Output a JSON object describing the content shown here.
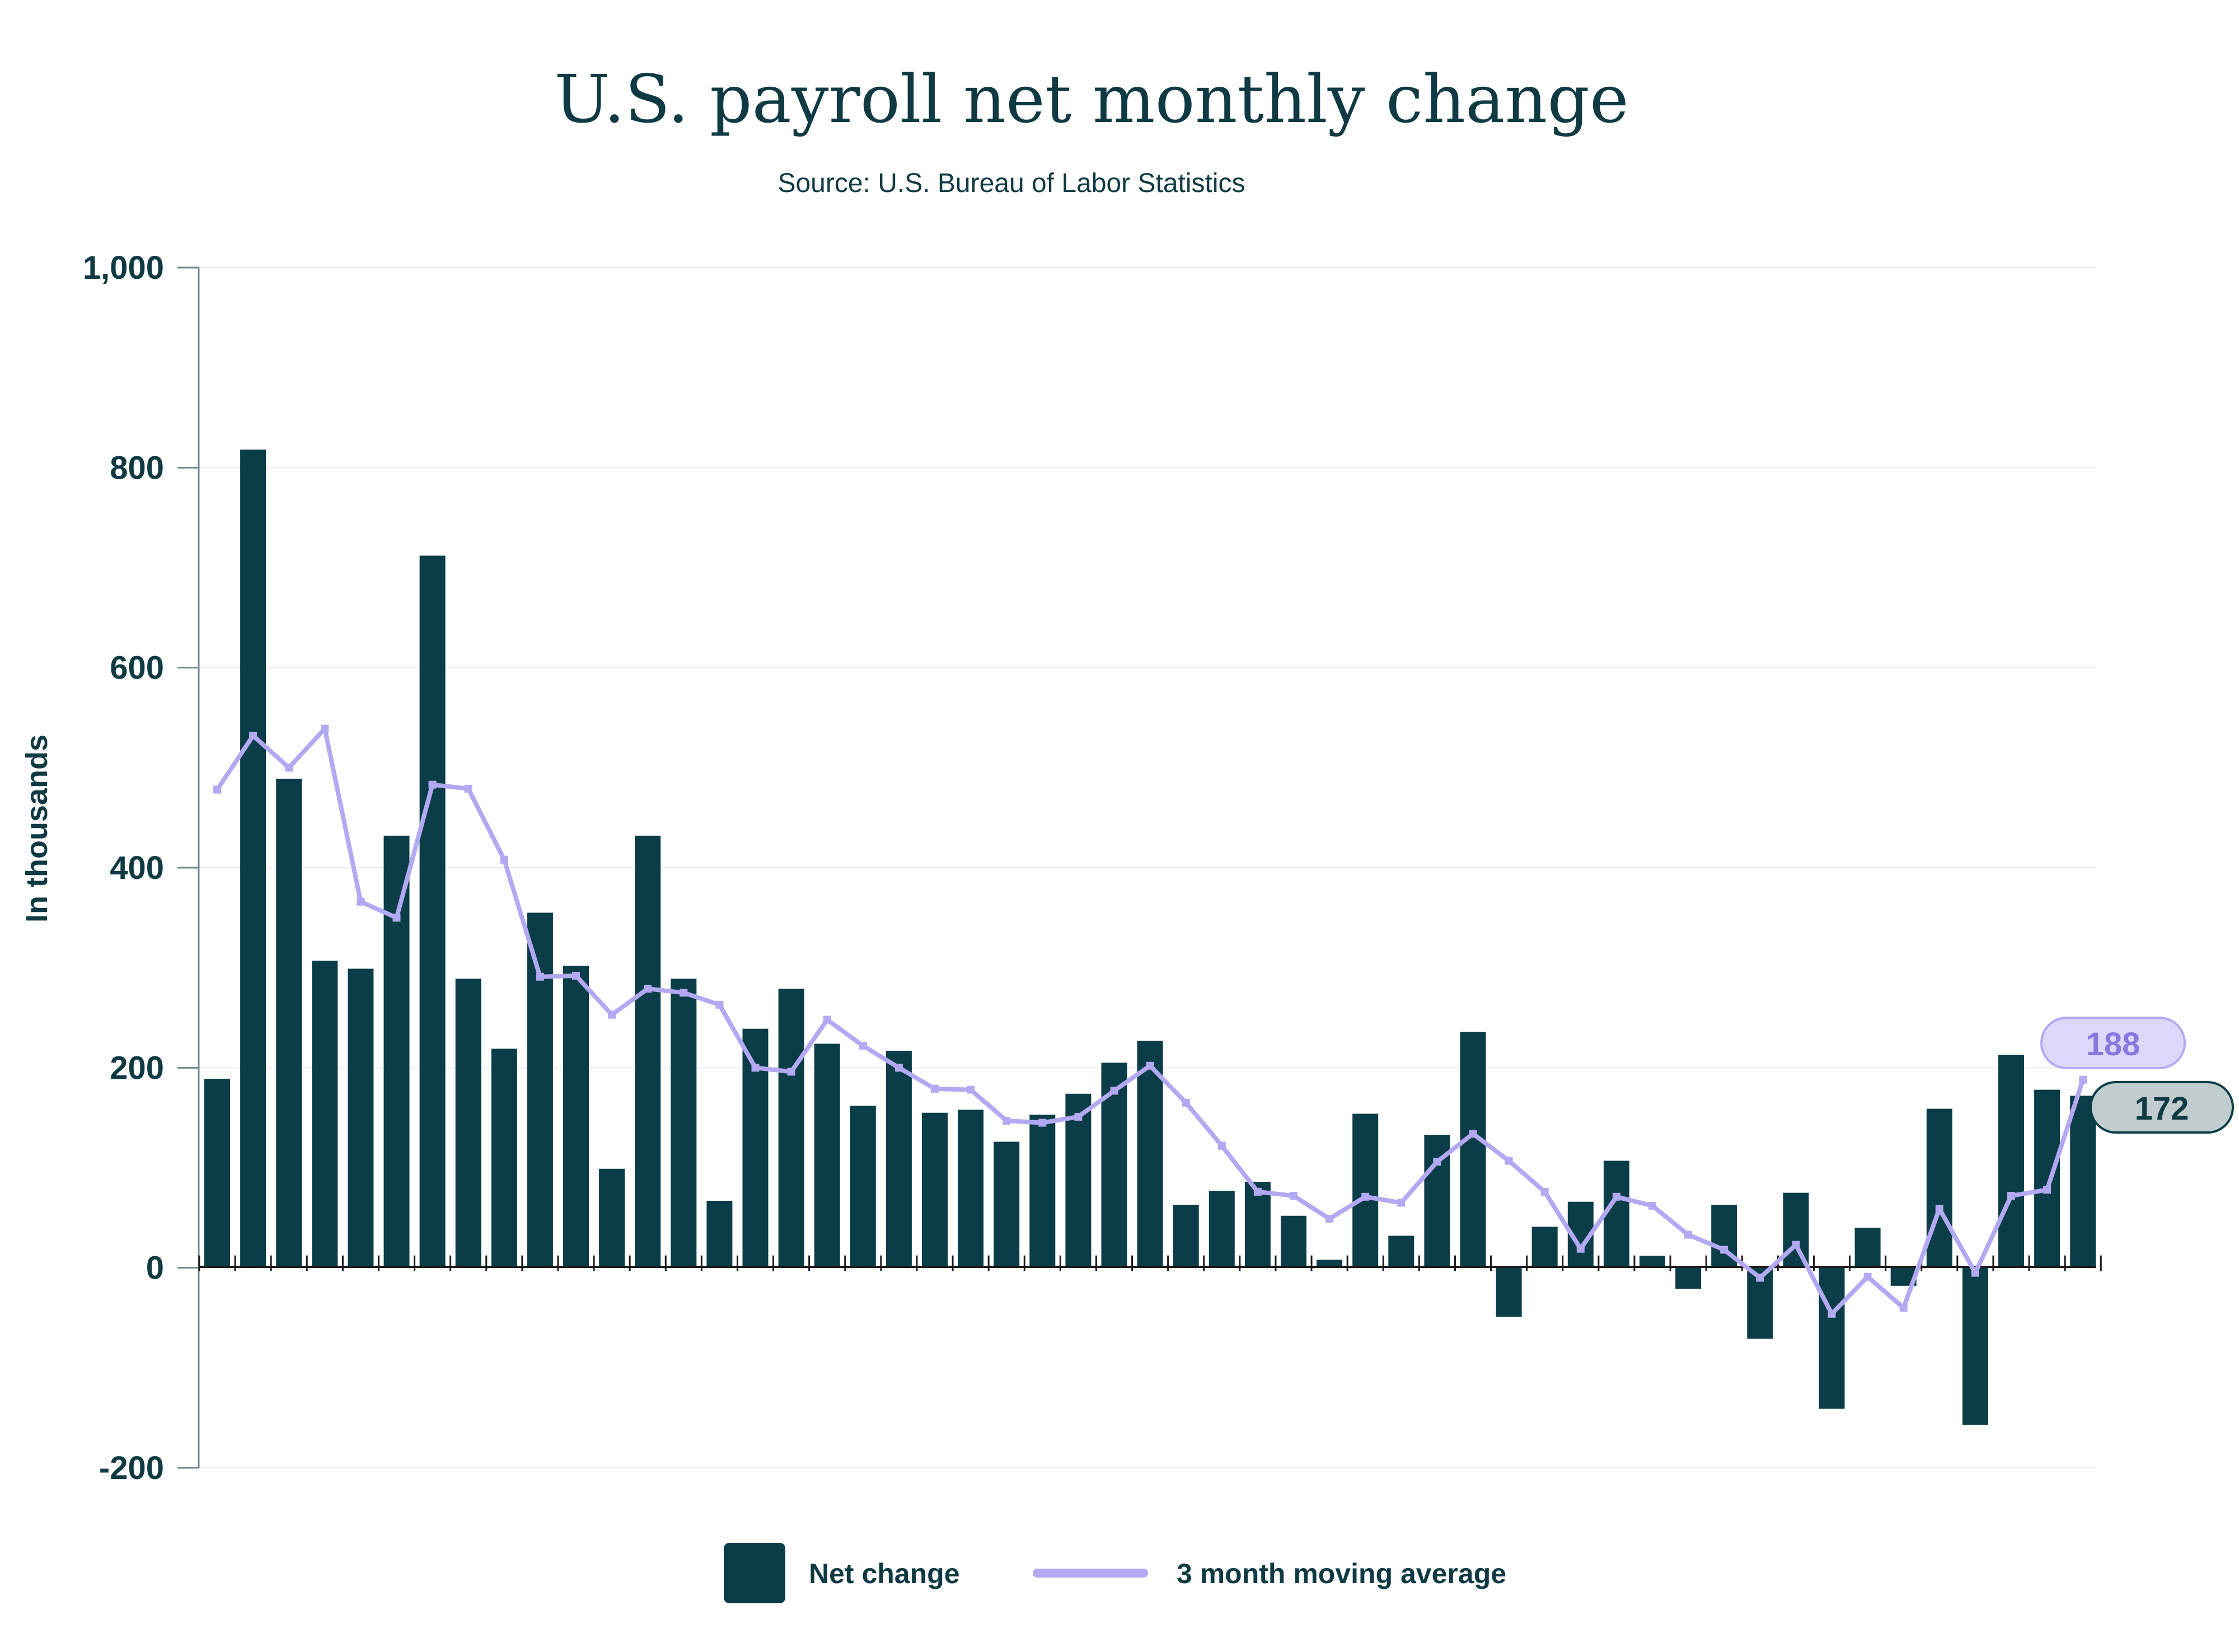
{
  "title": "U.S. payroll net monthly change",
  "subtitle": "Source: U.S. Bureau of Labor Statistics",
  "colors": {
    "bar": "#0a3d48",
    "line": "#b3a8f2",
    "callout_avg_fill": "#ddd7fa",
    "callout_avg_text": "#8a78e0",
    "callout_net_fill": "#c0ccce",
    "text": "#0f3a44",
    "grid": "#ececec"
  },
  "legend": {
    "net_change": "Net change",
    "moving_avg": "3 month moving average"
  },
  "callouts": {
    "avg_last": "188",
    "net_last": "172"
  },
  "chart_data": {
    "type": "bar",
    "title": "U.S. payroll net monthly change",
    "subtitle": "Source: U.S. Bureau of Labor Statistics",
    "ylabel": "In thousands",
    "xlabel": "",
    "ylim": [
      -200,
      1000
    ],
    "yticks": [
      -200,
      0,
      200,
      400,
      600,
      800,
      1000
    ],
    "ytick_labels": [
      "-200",
      "0",
      "200",
      "400",
      "600",
      "800",
      "1,000"
    ],
    "grid": true,
    "legend_position": "bottom",
    "series": [
      {
        "name": "Net change",
        "type": "bar",
        "values": [
          189,
          818,
          489,
          307,
          299,
          432,
          712,
          289,
          219,
          355,
          302,
          99,
          432,
          289,
          67,
          239,
          279,
          224,
          162,
          217,
          155,
          158,
          126,
          153,
          174,
          205,
          227,
          63,
          77,
          86,
          52,
          8,
          154,
          32,
          133,
          236,
          -49,
          41,
          66,
          107,
          12,
          -21,
          63,
          -71,
          75,
          -141,
          40,
          -18,
          159,
          -157,
          213,
          178,
          172
        ]
      },
      {
        "name": "3 month moving average",
        "type": "line",
        "values": [
          478,
          532,
          500,
          539,
          366,
          350,
          483,
          479,
          408,
          291,
          292,
          253,
          279,
          275,
          263,
          200,
          196,
          248,
          222,
          200,
          179,
          178,
          147,
          145,
          151,
          177,
          202,
          165,
          122,
          76,
          72,
          49,
          71,
          65,
          106,
          134,
          107,
          76,
          19,
          71,
          62,
          33,
          18,
          -10,
          23,
          -46,
          -9,
          -40,
          59,
          -5,
          72,
          78,
          188
        ]
      }
    ]
  }
}
